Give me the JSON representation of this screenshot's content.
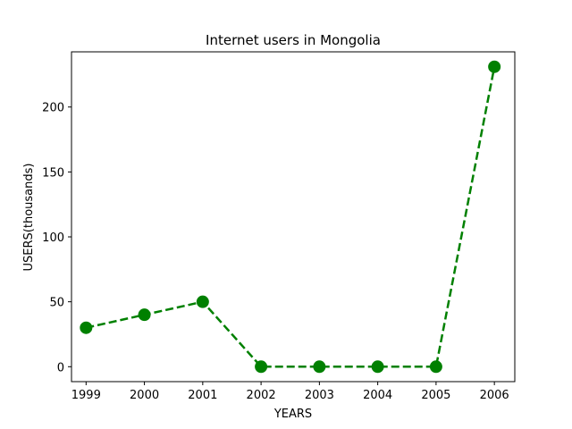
{
  "chart_data": {
    "type": "line",
    "title": "Internet users in Mongolia",
    "xlabel": "YEARS",
    "ylabel": "USERS(thousands)",
    "x": [
      1999,
      2000,
      2001,
      2002,
      2003,
      2004,
      2005,
      2006
    ],
    "series": [
      {
        "values": [
          30,
          40,
          50,
          0,
          0,
          0,
          0,
          231
        ]
      }
    ],
    "xlim": [
      1998.75,
      2006.35
    ],
    "ylim": [
      -11.5,
      242.5
    ],
    "xticks": [
      1999,
      2000,
      2001,
      2002,
      2003,
      2004,
      2005,
      2006
    ],
    "yticks": [
      0,
      50,
      100,
      150,
      200
    ],
    "line_style": "dashed",
    "marker": "circle",
    "color": "#008000",
    "grid": false
  }
}
